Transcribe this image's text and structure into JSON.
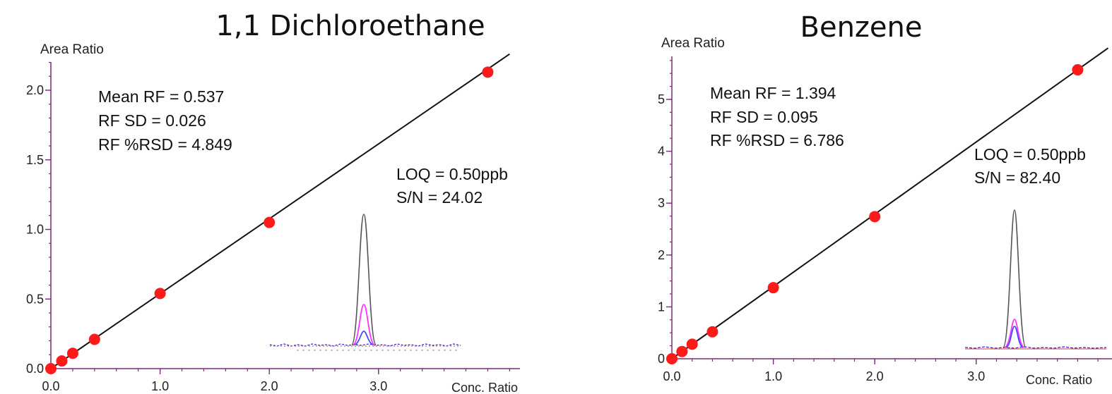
{
  "chart_data": [
    {
      "type": "scatter",
      "title": "1,1 Dichloroethane",
      "ylabel": "Area Ratio",
      "xlabel": "Conc. Ratio",
      "xlim": [
        0.0,
        4.2
      ],
      "ylim": [
        0.0,
        2.2
      ],
      "x_ticks": [
        {
          "value": 0.0,
          "label": "0.0"
        },
        {
          "value": 1.0,
          "label": "1.0"
        },
        {
          "value": 2.0,
          "label": "2.0"
        },
        {
          "value": 3.0,
          "label": "3.0"
        }
      ],
      "y_ticks": [
        {
          "value": 0.0,
          "label": "0.0"
        },
        {
          "value": 0.5,
          "label": "0.5"
        },
        {
          "value": 1.0,
          "label": "1.0"
        },
        {
          "value": 1.5,
          "label": "1.5"
        },
        {
          "value": 2.0,
          "label": "2.0"
        }
      ],
      "points": {
        "x": [
          0.0,
          0.1,
          0.2,
          0.4,
          1.0,
          2.0,
          4.0
        ],
        "y": [
          0.0,
          0.055,
          0.11,
          0.21,
          0.54,
          1.05,
          2.13
        ]
      },
      "fit_line": {
        "x": [
          0.0,
          4.2
        ],
        "y": [
          0.0,
          2.26
        ]
      },
      "stats": [
        "Mean RF = 0.537",
        "RF SD = 0.026",
        "RF %RSD = 4.849"
      ],
      "loq": [
        "LOQ = 0.50ppb",
        "S/N = 24.02"
      ],
      "colors": {
        "points": "#ff1a1a",
        "line": "#111111",
        "axis": "#7a2b7a"
      }
    },
    {
      "type": "scatter",
      "title": "Benzene",
      "ylabel": "Area Ratio",
      "xlabel": "Conc. Ratio",
      "xlim": [
        0.0,
        4.3
      ],
      "ylim": [
        0.0,
        5.8
      ],
      "x_ticks": [
        {
          "value": 0.0,
          "label": "0.0"
        },
        {
          "value": 1.0,
          "label": "1.0"
        },
        {
          "value": 2.0,
          "label": "2.0"
        },
        {
          "value": 3.0,
          "label": "3.0"
        }
      ],
      "y_ticks": [
        {
          "value": 0,
          "label": "0"
        },
        {
          "value": 1,
          "label": "1"
        },
        {
          "value": 2,
          "label": "2"
        },
        {
          "value": 3,
          "label": "3"
        },
        {
          "value": 4,
          "label": "4"
        },
        {
          "value": 5,
          "label": "5"
        }
      ],
      "points": {
        "x": [
          0.0,
          0.1,
          0.2,
          0.4,
          1.0,
          2.0,
          4.0
        ],
        "y": [
          0.0,
          0.14,
          0.28,
          0.52,
          1.37,
          2.74,
          5.57
        ]
      },
      "fit_line": {
        "x": [
          0.0,
          4.3
        ],
        "y": [
          0.0,
          5.99
        ]
      },
      "stats": [
        "Mean RF = 1.394",
        "RF SD = 0.095",
        "RF %RSD = 6.786"
      ],
      "loq": [
        "LOQ = 0.50ppb",
        "S/N = 82.40"
      ],
      "colors": {
        "points": "#ff1a1a",
        "line": "#111111",
        "axis": "#7a2b7a"
      }
    }
  ]
}
